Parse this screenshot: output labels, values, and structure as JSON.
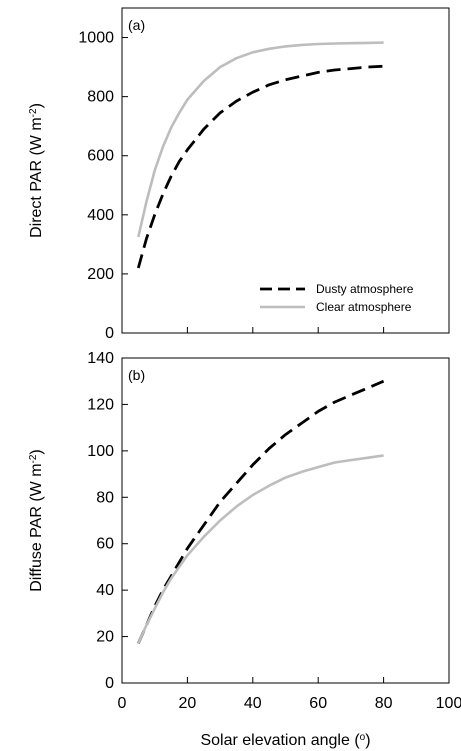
{
  "chart_data": [
    {
      "type": "line",
      "panel_label": "(a)",
      "ylabel": "Direct PAR (W m",
      "ylabel_sup": "-2",
      "ylabel_close": ")",
      "xlim": [
        0,
        100
      ],
      "ylim": [
        0,
        1100
      ],
      "xticks": [
        0,
        20,
        40,
        60,
        80,
        100
      ],
      "yticks": [
        0,
        200,
        400,
        600,
        800,
        1000
      ],
      "show_xticklabels": false,
      "legend_position": "bottom-right",
      "series": [
        {
          "name": "Dusty atmosphere",
          "style": "dashed",
          "color": "#000000",
          "x": [
            5,
            7.5,
            10,
            12.5,
            15,
            17.5,
            20,
            25,
            30,
            35,
            40,
            45,
            50,
            55,
            60,
            65,
            70,
            75,
            80
          ],
          "y": [
            220,
            320,
            400,
            470,
            530,
            580,
            620,
            690,
            745,
            785,
            815,
            840,
            857,
            870,
            882,
            890,
            895,
            900,
            903
          ]
        },
        {
          "name": "Clear atmosphere",
          "style": "solid",
          "color": "#bdbdbd",
          "x": [
            5,
            7.5,
            10,
            12.5,
            15,
            17.5,
            20,
            25,
            30,
            35,
            40,
            45,
            50,
            55,
            60,
            65,
            70,
            75,
            80
          ],
          "y": [
            325,
            445,
            550,
            630,
            695,
            745,
            790,
            853,
            900,
            930,
            950,
            962,
            970,
            975,
            978,
            980,
            981,
            982,
            983
          ]
        }
      ]
    },
    {
      "type": "line",
      "panel_label": "(b)",
      "xlabel": "Solar elevation angle (",
      "xlabel_sup": "o",
      "xlabel_close": ")",
      "ylabel": "Diffuse PAR (W m",
      "ylabel_sup": "-2",
      "ylabel_close": ")",
      "xlim": [
        0,
        100
      ],
      "ylim": [
        0,
        140
      ],
      "xticks": [
        0,
        20,
        40,
        60,
        80,
        100
      ],
      "yticks": [
        0,
        20,
        40,
        60,
        80,
        100,
        120,
        140
      ],
      "show_xticklabels": true,
      "series": [
        {
          "name": "Dusty atmosphere",
          "style": "dashed",
          "color": "#000000",
          "x": [
            5,
            7.5,
            10,
            12.5,
            15,
            17.5,
            20,
            25,
            30,
            35,
            40,
            45,
            50,
            55,
            60,
            65,
            70,
            75,
            80
          ],
          "y": [
            17,
            25,
            33,
            40,
            46,
            52,
            58,
            68,
            78,
            86,
            94,
            101,
            107,
            112,
            117,
            121,
            124,
            127,
            130
          ]
        },
        {
          "name": "Clear atmosphere",
          "style": "solid",
          "color": "#bdbdbd",
          "x": [
            5,
            7.5,
            10,
            12.5,
            15,
            17.5,
            20,
            25,
            30,
            35,
            40,
            45,
            50,
            55,
            60,
            65,
            70,
            75,
            80
          ],
          "y": [
            17,
            25,
            32,
            39,
            45,
            50,
            55,
            63,
            70,
            76,
            81,
            85,
            88.5,
            91,
            93,
            95,
            96,
            97,
            98
          ]
        }
      ]
    }
  ]
}
